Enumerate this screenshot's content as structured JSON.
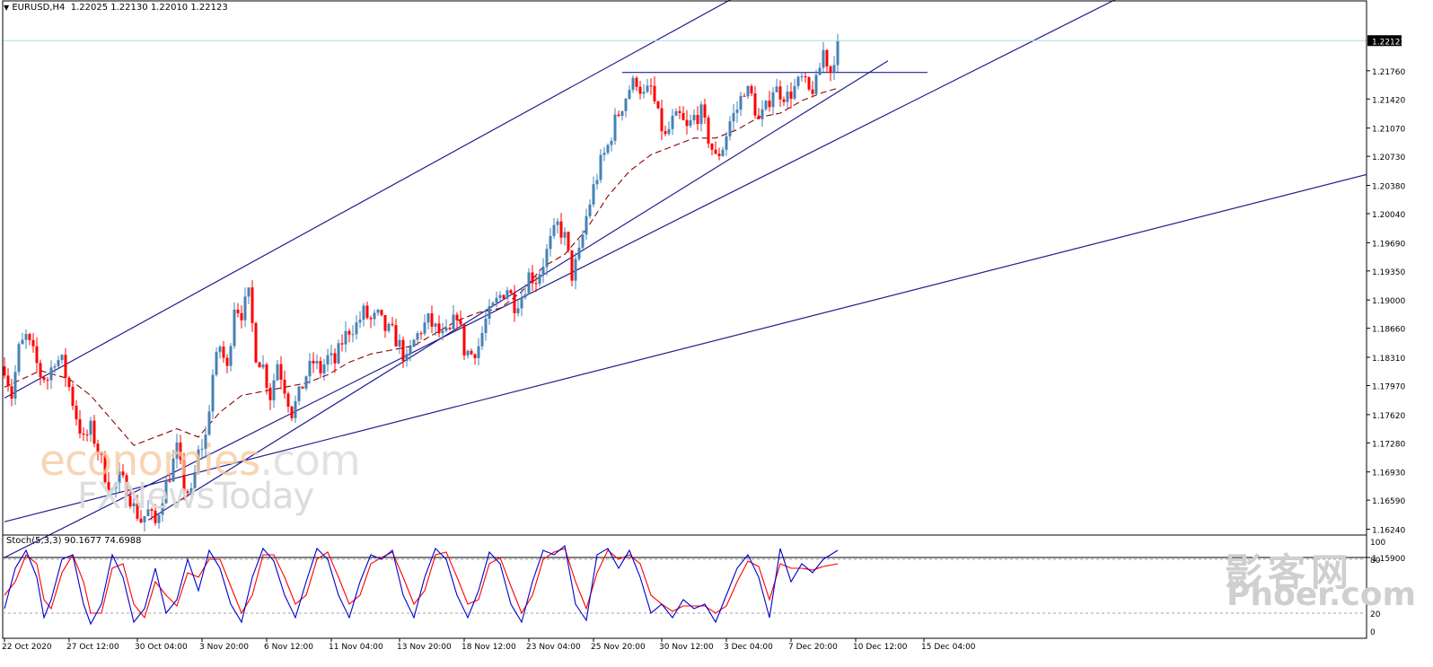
{
  "header": {
    "arrow": "▼",
    "symbol": "EURUSD,H4",
    "open": "1.22025",
    "high": "1.22130",
    "low": "1.22010",
    "close": "1.22123"
  },
  "stochastic_header": "Stoch(5,3,3) 90.1677 74.6988",
  "watermarks": {
    "economies": "economies",
    "economies_tld": ".com",
    "fxnews": "FXNewsToday",
    "phoer_cn": "影客网",
    "phoer": "Phoer.com"
  },
  "colors": {
    "bull": "#4682b4",
    "bear": "#ff0000",
    "trendline": "#1f1f8f",
    "ma": "#8b0000",
    "price_line": "#add8e6",
    "stoch_main": "#0000cd",
    "stoch_signal": "#ff0000",
    "current_price_bg": "#000000"
  },
  "chart_data": {
    "type": "candlestick",
    "symbol": "EURUSD",
    "timeframe": "H4",
    "current_price": 1.22123,
    "ylim": [
      1.159,
      1.2245
    ],
    "price_ticks": [
      "1.21760",
      "1.21420",
      "1.21070",
      "1.20730",
      "1.20380",
      "1.20040",
      "1.19690",
      "1.19350",
      "1.19000",
      "1.18660",
      "1.18310",
      "1.17970",
      "1.17620",
      "1.17280",
      "1.16930",
      "1.16590",
      "1.16240",
      "1.15900"
    ],
    "x_labels": [
      "22 Oct 2020",
      "27 Oct 12:00",
      "30 Oct 04:00",
      "3 Nov 20:00",
      "6 Nov 12:00",
      "11 Nov 04:00",
      "13 Nov 20:00",
      "18 Nov 12:00",
      "23 Nov 04:00",
      "25 Nov 20:00",
      "30 Nov 12:00",
      "3 Dec 04:00",
      "7 Dec 20:00",
      "10 Dec 12:00",
      "15 Dec 04:00"
    ],
    "price_anchors": [
      [
        0,
        1.182
      ],
      [
        2,
        1.1785
      ],
      [
        4,
        1.184
      ],
      [
        6,
        1.1855
      ],
      [
        8,
        1.1835
      ],
      [
        10,
        1.181
      ],
      [
        12,
        1.1805
      ],
      [
        14,
        1.183
      ],
      [
        16,
        1.1825
      ],
      [
        18,
        1.1795
      ],
      [
        20,
        1.176
      ],
      [
        22,
        1.173
      ],
      [
        24,
        1.1745
      ],
      [
        26,
        1.172
      ],
      [
        28,
        1.169
      ],
      [
        30,
        1.167
      ],
      [
        32,
        1.1685
      ],
      [
        34,
        1.1675
      ],
      [
        36,
        1.165
      ],
      [
        38,
        1.1635
      ],
      [
        40,
        1.1645
      ],
      [
        42,
        1.163
      ],
      [
        44,
        1.1665
      ],
      [
        46,
        1.169
      ],
      [
        48,
        1.172
      ],
      [
        50,
        1.1675
      ],
      [
        52,
        1.1665
      ],
      [
        54,
        1.1715
      ],
      [
        56,
        1.1735
      ],
      [
        58,
        1.181
      ],
      [
        60,
        1.1845
      ],
      [
        62,
        1.1815
      ],
      [
        64,
        1.1895
      ],
      [
        66,
        1.1885
      ],
      [
        68,
        1.1905
      ],
      [
        70,
        1.1835
      ],
      [
        72,
        1.182
      ],
      [
        74,
        1.1785
      ],
      [
        76,
        1.1825
      ],
      [
        78,
        1.1795
      ],
      [
        80,
        1.1765
      ],
      [
        82,
        1.1785
      ],
      [
        84,
        1.181
      ],
      [
        86,
        1.1825
      ],
      [
        88,
        1.1815
      ],
      [
        90,
        1.183
      ],
      [
        92,
        1.1825
      ],
      [
        94,
        1.185
      ],
      [
        96,
        1.1865
      ],
      [
        98,
        1.187
      ],
      [
        100,
        1.1885
      ],
      [
        102,
        1.1875
      ],
      [
        104,
        1.188
      ],
      [
        106,
        1.1865
      ],
      [
        108,
        1.186
      ],
      [
        110,
        1.1845
      ],
      [
        112,
        1.1825
      ],
      [
        114,
        1.185
      ],
      [
        116,
        1.1865
      ],
      [
        118,
        1.1875
      ],
      [
        120,
        1.1865
      ],
      [
        122,
        1.1855
      ],
      [
        124,
        1.186
      ],
      [
        126,
        1.1885
      ],
      [
        128,
        1.184
      ],
      [
        130,
        1.1835
      ],
      [
        132,
        1.1845
      ],
      [
        134,
        1.1875
      ],
      [
        136,
        1.189
      ],
      [
        138,
        1.1905
      ],
      [
        140,
        1.1915
      ],
      [
        142,
        1.1895
      ],
      [
        144,
        1.1905
      ],
      [
        146,
        1.193
      ],
      [
        148,
        1.1925
      ],
      [
        150,
        1.1945
      ],
      [
        152,
        1.197
      ],
      [
        154,
        1.199
      ],
      [
        156,
        1.1975
      ],
      [
        158,
        1.193
      ],
      [
        160,
        1.1955
      ],
      [
        162,
        1.2
      ],
      [
        164,
        1.2035
      ],
      [
        166,
        1.2065
      ],
      [
        168,
        1.2085
      ],
      [
        170,
        1.2115
      ],
      [
        172,
        1.2135
      ],
      [
        174,
        1.2155
      ],
      [
        176,
        1.2165
      ],
      [
        178,
        1.2145
      ],
      [
        180,
        1.2155
      ],
      [
        182,
        1.212
      ],
      [
        184,
        1.2095
      ],
      [
        186,
        1.2115
      ],
      [
        188,
        1.212
      ],
      [
        190,
        1.2105
      ],
      [
        192,
        1.212
      ],
      [
        194,
        1.2125
      ],
      [
        196,
        1.2095
      ],
      [
        198,
        1.207
      ],
      [
        200,
        1.2085
      ],
      [
        202,
        1.2115
      ],
      [
        204,
        1.213
      ],
      [
        206,
        1.2155
      ],
      [
        208,
        1.2145
      ],
      [
        210,
        1.2115
      ],
      [
        212,
        1.213
      ],
      [
        214,
        1.2155
      ],
      [
        216,
        1.215
      ],
      [
        218,
        1.2145
      ],
      [
        220,
        1.2155
      ],
      [
        222,
        1.2165
      ],
      [
        224,
        1.215
      ],
      [
        226,
        1.216
      ],
      [
        228,
        1.22
      ],
      [
        230,
        1.2175
      ],
      [
        232,
        1.2212
      ]
    ],
    "moving_average_anchors": [
      [
        0,
        1.1795
      ],
      [
        10,
        1.1815
      ],
      [
        18,
        1.1805
      ],
      [
        24,
        1.1785
      ],
      [
        30,
        1.1755
      ],
      [
        36,
        1.1725
      ],
      [
        42,
        1.1735
      ],
      [
        48,
        1.1745
      ],
      [
        54,
        1.1735
      ],
      [
        60,
        1.1765
      ],
      [
        66,
        1.1785
      ],
      [
        72,
        1.179
      ],
      [
        78,
        1.1795
      ],
      [
        84,
        1.18
      ],
      [
        90,
        1.181
      ],
      [
        96,
        1.1825
      ],
      [
        102,
        1.1835
      ],
      [
        108,
        1.184
      ],
      [
        114,
        1.1845
      ],
      [
        120,
        1.186
      ],
      [
        126,
        1.1875
      ],
      [
        132,
        1.1885
      ],
      [
        138,
        1.189
      ],
      [
        144,
        1.191
      ],
      [
        150,
        1.194
      ],
      [
        156,
        1.1955
      ],
      [
        162,
        1.1985
      ],
      [
        168,
        1.2025
      ],
      [
        174,
        1.2055
      ],
      [
        180,
        1.2075
      ],
      [
        186,
        1.2085
      ],
      [
        192,
        1.2095
      ],
      [
        198,
        1.2095
      ],
      [
        204,
        1.2105
      ],
      [
        210,
        1.212
      ],
      [
        216,
        1.2125
      ],
      [
        222,
        1.214
      ],
      [
        228,
        1.215
      ],
      [
        232,
        1.2155
      ]
    ],
    "trendlines": [
      {
        "name": "upper-channel",
        "p1": [
          0,
          1.1782
        ],
        "p2": [
          212,
          1.2285
        ]
      },
      {
        "name": "channel-parallel",
        "p1": [
          0,
          1.159
        ],
        "p2": [
          320,
          1.2285
        ]
      },
      {
        "name": "long-support",
        "p1": [
          0,
          1.1633
        ],
        "p2": [
          380,
          1.2052
        ]
      },
      {
        "name": "rising-support",
        "p1": [
          40,
          1.1635
        ],
        "p2": [
          246,
          1.2188
        ]
      },
      {
        "name": "resistance",
        "p1": [
          172,
          1.2174
        ],
        "p2": [
          257,
          1.2174
        ]
      }
    ],
    "stochastic": {
      "k_period": 5,
      "d_period": 3,
      "slowing": 3,
      "main_last": 90.1677,
      "signal_last": 74.6988,
      "levels": [
        80,
        20
      ],
      "scale_labels": [
        "100",
        "80",
        "20",
        "0"
      ],
      "main_anchors": [
        [
          0,
          25
        ],
        [
          3,
          70
        ],
        [
          6,
          90
        ],
        [
          9,
          60
        ],
        [
          11,
          15
        ],
        [
          13,
          35
        ],
        [
          16,
          80
        ],
        [
          19,
          85
        ],
        [
          22,
          30
        ],
        [
          24,
          8
        ],
        [
          27,
          30
        ],
        [
          30,
          85
        ],
        [
          33,
          60
        ],
        [
          36,
          10
        ],
        [
          39,
          25
        ],
        [
          42,
          70
        ],
        [
          45,
          20
        ],
        [
          48,
          35
        ],
        [
          51,
          80
        ],
        [
          54,
          45
        ],
        [
          57,
          90
        ],
        [
          60,
          70
        ],
        [
          63,
          30
        ],
        [
          66,
          10
        ],
        [
          69,
          60
        ],
        [
          72,
          92
        ],
        [
          75,
          78
        ],
        [
          78,
          40
        ],
        [
          81,
          15
        ],
        [
          84,
          55
        ],
        [
          87,
          92
        ],
        [
          90,
          80
        ],
        [
          93,
          40
        ],
        [
          96,
          15
        ],
        [
          99,
          55
        ],
        [
          102,
          85
        ],
        [
          105,
          80
        ],
        [
          108,
          90
        ],
        [
          111,
          40
        ],
        [
          114,
          15
        ],
        [
          117,
          60
        ],
        [
          120,
          92
        ],
        [
          123,
          80
        ],
        [
          126,
          40
        ],
        [
          129,
          15
        ],
        [
          132,
          45
        ],
        [
          135,
          88
        ],
        [
          138,
          75
        ],
        [
          141,
          30
        ],
        [
          144,
          10
        ],
        [
          147,
          55
        ],
        [
          150,
          90
        ],
        [
          153,
          85
        ],
        [
          156,
          95
        ],
        [
          159,
          30
        ],
        [
          162,
          12
        ],
        [
          165,
          85
        ],
        [
          168,
          92
        ],
        [
          171,
          70
        ],
        [
          174,
          90
        ],
        [
          177,
          60
        ],
        [
          180,
          20
        ],
        [
          183,
          30
        ],
        [
          186,
          15
        ],
        [
          189,
          35
        ],
        [
          192,
          25
        ],
        [
          195,
          30
        ],
        [
          198,
          10
        ],
        [
          201,
          40
        ],
        [
          204,
          70
        ],
        [
          207,
          85
        ],
        [
          210,
          60
        ],
        [
          213,
          15
        ],
        [
          216,
          92
        ],
        [
          219,
          55
        ],
        [
          222,
          75
        ],
        [
          225,
          65
        ],
        [
          228,
          80
        ],
        [
          232,
          90
        ]
      ],
      "signal_anchors": [
        [
          0,
          40
        ],
        [
          3,
          55
        ],
        [
          6,
          85
        ],
        [
          9,
          75
        ],
        [
          11,
          35
        ],
        [
          13,
          25
        ],
        [
          16,
          65
        ],
        [
          19,
          85
        ],
        [
          22,
          55
        ],
        [
          24,
          20
        ],
        [
          27,
          20
        ],
        [
          30,
          70
        ],
        [
          33,
          75
        ],
        [
          36,
          30
        ],
        [
          39,
          15
        ],
        [
          42,
          55
        ],
        [
          45,
          40
        ],
        [
          48,
          28
        ],
        [
          51,
          65
        ],
        [
          54,
          60
        ],
        [
          57,
          80
        ],
        [
          60,
          80
        ],
        [
          63,
          50
        ],
        [
          66,
          20
        ],
        [
          69,
          40
        ],
        [
          72,
          85
        ],
        [
          75,
          85
        ],
        [
          78,
          60
        ],
        [
          81,
          30
        ],
        [
          84,
          40
        ],
        [
          87,
          80
        ],
        [
          90,
          88
        ],
        [
          93,
          60
        ],
        [
          96,
          30
        ],
        [
          99,
          40
        ],
        [
          102,
          75
        ],
        [
          105,
          82
        ],
        [
          108,
          88
        ],
        [
          111,
          60
        ],
        [
          114,
          30
        ],
        [
          117,
          45
        ],
        [
          120,
          85
        ],
        [
          123,
          88
        ],
        [
          126,
          60
        ],
        [
          129,
          30
        ],
        [
          132,
          35
        ],
        [
          135,
          75
        ],
        [
          138,
          82
        ],
        [
          141,
          50
        ],
        [
          144,
          20
        ],
        [
          147,
          40
        ],
        [
          150,
          80
        ],
        [
          153,
          88
        ],
        [
          156,
          92
        ],
        [
          159,
          55
        ],
        [
          162,
          25
        ],
        [
          165,
          65
        ],
        [
          168,
          90
        ],
        [
          171,
          80
        ],
        [
          174,
          85
        ],
        [
          177,
          75
        ],
        [
          180,
          40
        ],
        [
          183,
          30
        ],
        [
          186,
          22
        ],
        [
          189,
          28
        ],
        [
          192,
          28
        ],
        [
          195,
          28
        ],
        [
          198,
          20
        ],
        [
          201,
          28
        ],
        [
          204,
          55
        ],
        [
          207,
          78
        ],
        [
          210,
          72
        ],
        [
          213,
          35
        ],
        [
          216,
          75
        ],
        [
          219,
          70
        ],
        [
          222,
          70
        ],
        [
          225,
          68
        ],
        [
          228,
          72
        ],
        [
          232,
          75
        ]
      ]
    }
  }
}
